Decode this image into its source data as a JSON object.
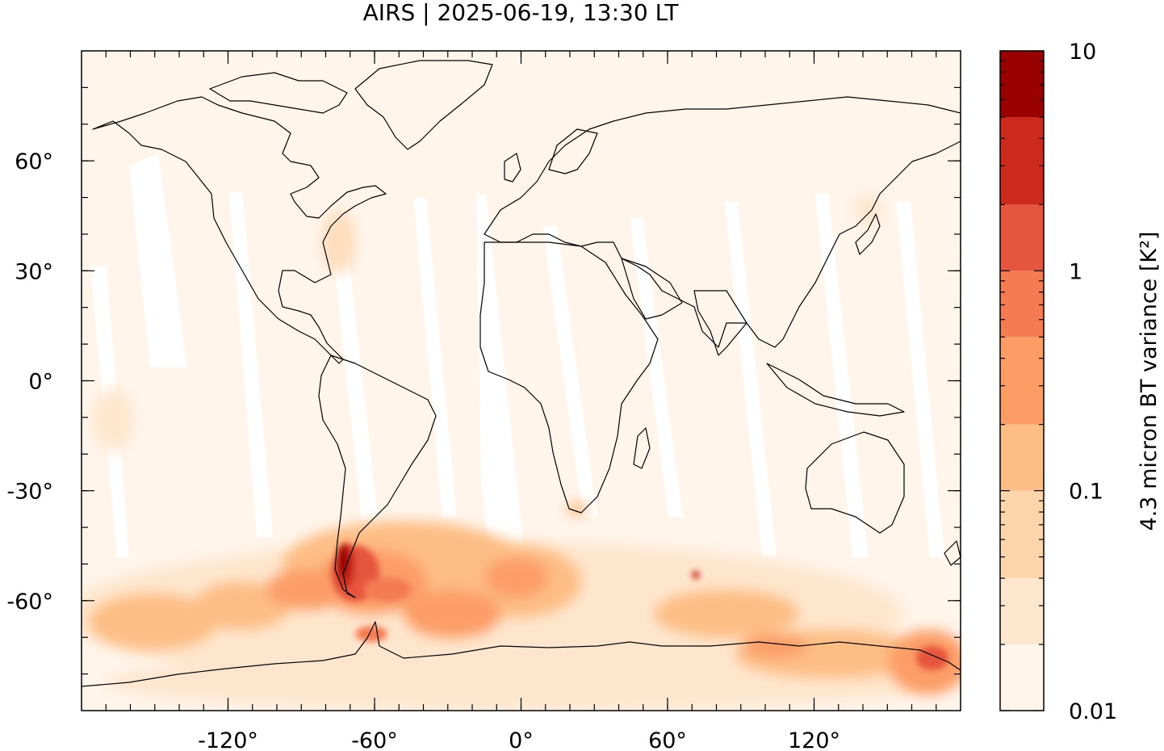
{
  "title": "AIRS | 2025-06-19, 13:30 LT",
  "map": {
    "lon_range": [
      -180,
      180
    ],
    "lat_range": [
      -90,
      90
    ],
    "x_ticks": [
      {
        "value": -120,
        "label": "-120°"
      },
      {
        "value": -60,
        "label": "-60°"
      },
      {
        "value": 0,
        "label": "0°"
      },
      {
        "value": 60,
        "label": "60°"
      },
      {
        "value": 120,
        "label": "120°"
      }
    ],
    "y_ticks": [
      {
        "value": 60,
        "label": "60°"
      },
      {
        "value": 30,
        "label": "30°"
      },
      {
        "value": 0,
        "label": "0°"
      },
      {
        "value": -30,
        "label": "-30°"
      },
      {
        "value": -60,
        "label": "-60°"
      }
    ],
    "background_color": "#fff5eb",
    "coastline_color": "#000000"
  },
  "colorbar": {
    "label": "4.3 micron BT variance [K²]",
    "scale": "log",
    "range": [
      0.01,
      10
    ],
    "tick_labels": [
      {
        "value": 10,
        "label": "10"
      },
      {
        "value": 1,
        "label": "1"
      },
      {
        "value": 0.1,
        "label": "0.1"
      },
      {
        "value": 0.01,
        "label": "0.01"
      }
    ],
    "levels": [
      {
        "from": 0.01,
        "to": 0.02,
        "color": "#fff5eb"
      },
      {
        "from": 0.02,
        "to": 0.04,
        "color": "#fee6ce"
      },
      {
        "from": 0.04,
        "to": 0.1,
        "color": "#fdd5ab"
      },
      {
        "from": 0.1,
        "to": 0.2,
        "color": "#fdbe85"
      },
      {
        "from": 0.2,
        "to": 0.5,
        "color": "#fc9d66"
      },
      {
        "from": 0.5,
        "to": 1,
        "color": "#f47b52"
      },
      {
        "from": 1,
        "to": 2,
        "color": "#e6553d"
      },
      {
        "from": 2,
        "to": 5,
        "color": "#cb2a1c"
      },
      {
        "from": 5,
        "to": 10,
        "color": "#990000"
      }
    ]
  }
}
